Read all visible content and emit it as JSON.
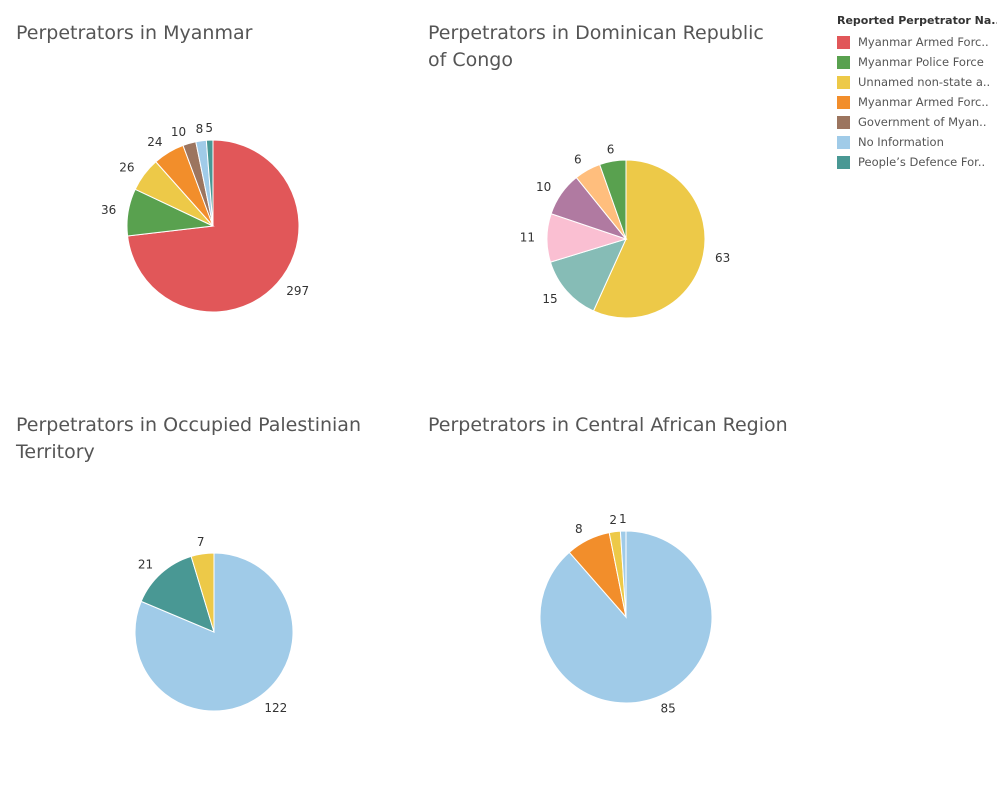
{
  "legend": {
    "title": "Reported Perpetrator Na..",
    "items": [
      {
        "label": "Myanmar Armed Forc..",
        "color": "#e15759"
      },
      {
        "label": "Myanmar Police Force",
        "color": "#59a14f"
      },
      {
        "label": "Unnamed non-state a..",
        "color": "#edc948"
      },
      {
        "label": "Myanmar Armed Forc..",
        "color": "#f28e2b"
      },
      {
        "label": "Government of Myan..",
        "color": "#9c755f"
      },
      {
        "label": "No Information",
        "color": "#a0cbe8"
      },
      {
        "label": "People’s Defence For..",
        "color": "#499894"
      }
    ]
  },
  "chart_data": [
    {
      "type": "pie",
      "title": "Perpetrators in Myanmar",
      "slices": [
        {
          "value": 297,
          "color": "#e15759"
        },
        {
          "value": 36,
          "color": "#59a14f"
        },
        {
          "value": 26,
          "color": "#edc948"
        },
        {
          "value": 24,
          "color": "#f28e2b"
        },
        {
          "value": 10,
          "color": "#9c755f"
        },
        {
          "value": 8,
          "color": "#a0cbe8"
        },
        {
          "value": 5,
          "color": "#499894"
        }
      ]
    },
    {
      "type": "pie",
      "title": "Perpetrators in Dominican Republic of Congo",
      "slices": [
        {
          "value": 63,
          "color": "#edc948"
        },
        {
          "value": 15,
          "color": "#86bcb6"
        },
        {
          "value": 11,
          "color": "#fabfd2"
        },
        {
          "value": 10,
          "color": "#b07aa1"
        },
        {
          "value": 6,
          "color": "#ffbe7d"
        },
        {
          "value": 6,
          "color": "#59a14f"
        }
      ]
    },
    {
      "type": "pie",
      "title": "Perpetrators in Occupied Palestinian Territory",
      "slices": [
        {
          "value": 122,
          "color": "#a0cbe8"
        },
        {
          "value": 21,
          "color": "#499894"
        },
        {
          "value": 7,
          "color": "#edc948"
        }
      ]
    },
    {
      "type": "pie",
      "title": "Perpetrators in Central African Region",
      "slices": [
        {
          "value": 85,
          "color": "#a0cbe8"
        },
        {
          "value": 8,
          "color": "#f28e2b"
        },
        {
          "value": 2,
          "color": "#edc948"
        },
        {
          "value": 1,
          "color": "#a0cbe8"
        }
      ]
    }
  ]
}
